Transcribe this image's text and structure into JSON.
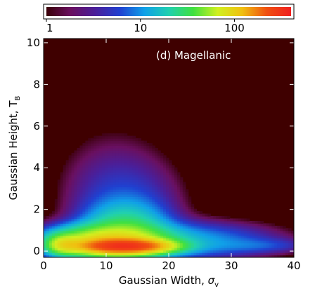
{
  "chart_data": {
    "type": "heatmap",
    "title": "",
    "annotation": "(d) Magellanic",
    "xlabel_text": "Gaussian Width, ",
    "xlabel_symbol": "σ",
    "xlabel_subscript": "v",
    "ylabel_text": "Gaussian Height, T",
    "ylabel_subscript": "B",
    "xlim": [
      0,
      40
    ],
    "ylim": [
      -0.3,
      10.2
    ],
    "x_ticks": [
      0,
      10,
      20,
      30,
      40
    ],
    "x_tick_labels": [
      "0",
      "10",
      "20",
      "30",
      "40"
    ],
    "y_ticks": [
      0,
      2,
      4,
      6,
      8,
      10
    ],
    "y_tick_labels": [
      "0",
      "2",
      "4",
      "6",
      "8",
      "10"
    ],
    "grid": false,
    "background_color": "#3f0000",
    "colorbar": {
      "orientation": "horizontal",
      "placement": "top",
      "scale": "log",
      "range": [
        1,
        400
      ],
      "ticks": [
        1,
        10,
        100
      ],
      "tick_labels": [
        "1",
        "10",
        "100"
      ],
      "colormap": [
        "#3a0008",
        "#6a1060",
        "#4a1f9a",
        "#2040d0",
        "#10a0e8",
        "#20d0b0",
        "#40e040",
        "#d0f020",
        "#f0c010",
        "#f05010",
        "#f02020"
      ]
    },
    "density_components": [
      {
        "x": 13,
        "y": 0.25,
        "sx": 4.2,
        "sy": 0.2,
        "amp": 250
      },
      {
        "x": 10,
        "y": 0.45,
        "sx": 5.5,
        "sy": 0.45,
        "amp": 80
      },
      {
        "x": 13,
        "y": 1.0,
        "sx": 4.0,
        "sy": 0.8,
        "amp": 25
      },
      {
        "x": 3.2,
        "y": 0.32,
        "sx": 1.6,
        "sy": 0.28,
        "amp": 50
      },
      {
        "x": 22,
        "y": 0.5,
        "sx": 9.0,
        "sy": 0.55,
        "amp": 12
      },
      {
        "x": 35,
        "y": 0.28,
        "sx": 5.0,
        "sy": 0.22,
        "amp": 4
      },
      {
        "x": 13,
        "y": 2.3,
        "sx": 5.5,
        "sy": 1.3,
        "amp": 5
      },
      {
        "x": 11,
        "y": 4.0,
        "sx": 6.0,
        "sy": 1.6,
        "amp": 1.6
      }
    ]
  }
}
